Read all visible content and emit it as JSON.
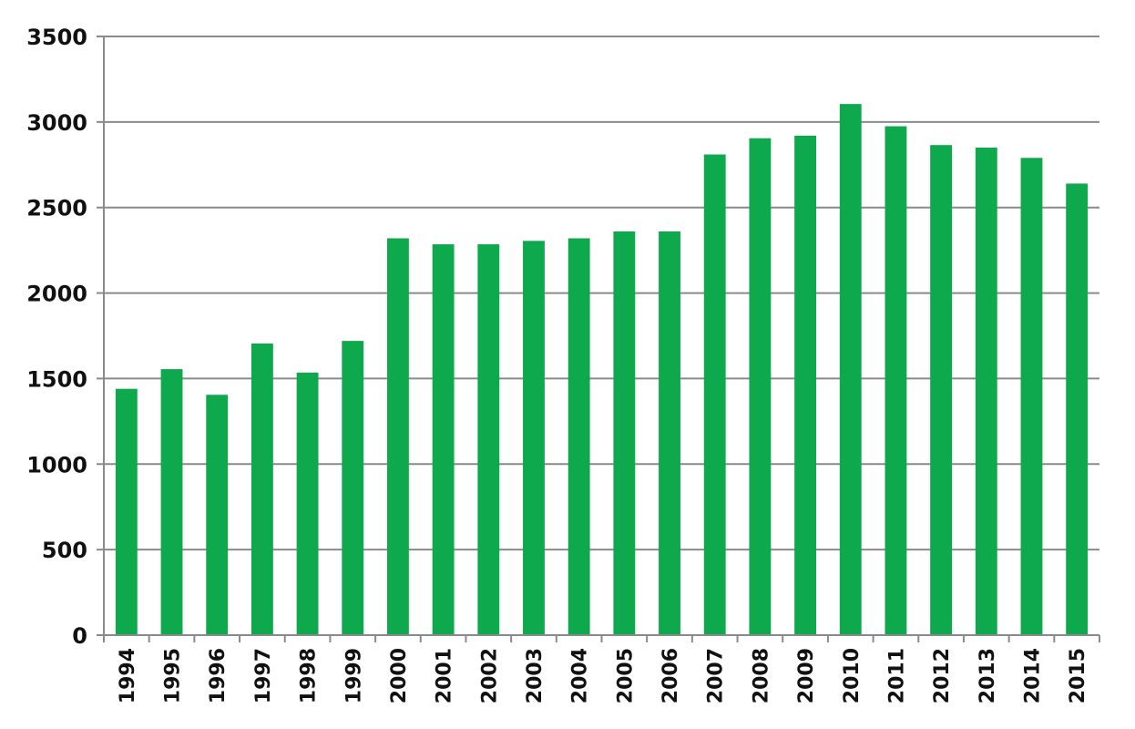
{
  "chart_data": {
    "type": "bar",
    "title": "",
    "xlabel": "",
    "ylabel": "",
    "categories": [
      "1994",
      "1995",
      "1996",
      "1997",
      "1998",
      "1999",
      "2000",
      "2001",
      "2002",
      "2003",
      "2004",
      "2005",
      "2006",
      "2007",
      "2008",
      "2009",
      "2010",
      "2011",
      "2012",
      "2013",
      "2014",
      "2015"
    ],
    "values": [
      1440,
      1555,
      1405,
      1705,
      1535,
      1720,
      2320,
      2285,
      2285,
      2305,
      2320,
      2360,
      2360,
      2810,
      2905,
      2920,
      3105,
      2975,
      2865,
      2850,
      2790,
      2640
    ],
    "ylim": [
      0,
      3500
    ],
    "yticks": [
      "0",
      "500",
      "1000",
      "1500",
      "2000",
      "2500",
      "3000",
      "3500"
    ],
    "grid": true,
    "legend": "none",
    "colors": {
      "bar": "#0ea84d",
      "grid": "#8a8a8a",
      "text": "#111111"
    }
  }
}
